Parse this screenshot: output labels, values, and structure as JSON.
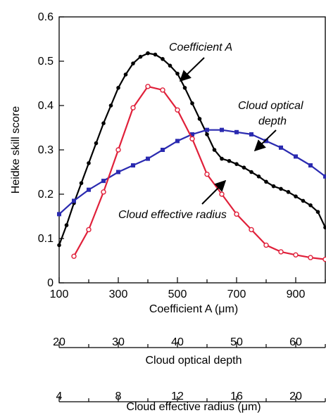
{
  "chart_data": {
    "type": "line",
    "title": "",
    "ylabel": "Heidke skill score",
    "ylim": [
      0,
      0.6
    ],
    "yticks": [
      "0",
      "0.1",
      "0.2",
      "0.3",
      "0.4",
      "0.5",
      "0.6"
    ],
    "ytick_values": [
      0,
      0.1,
      0.2,
      0.3,
      0.4,
      0.5,
      0.6
    ],
    "grid": false,
    "legend": "none",
    "axes": [
      {
        "name": "Coefficient A (μm)",
        "range": [
          100,
          1000
        ],
        "ticks": [
          100,
          300,
          500,
          700,
          900
        ],
        "tick_labels": [
          "100",
          "300",
          "500",
          "700",
          "900"
        ],
        "minor_ticks": [
          200,
          400,
          600,
          800,
          1000
        ]
      },
      {
        "name": "Cloud optical depth",
        "range": [
          20,
          65
        ],
        "ticks": [
          20,
          30,
          40,
          50,
          60
        ],
        "tick_labels": [
          "20",
          "30",
          "40",
          "50",
          "60"
        ],
        "minor_ticks": [
          25,
          35,
          45,
          55,
          65
        ]
      },
      {
        "name": "Cloud effective radius (μm)",
        "range": [
          4,
          22
        ],
        "ticks": [
          4,
          8,
          12,
          16,
          20
        ],
        "tick_labels": [
          "4",
          "8",
          "12",
          "16",
          "20"
        ],
        "minor_ticks": [
          6,
          10,
          14,
          18,
          22
        ]
      }
    ],
    "series": [
      {
        "name": "Coefficient A",
        "color": "#000000",
        "marker": "filled-circle",
        "x": [
          100,
          125,
          150,
          175,
          200,
          225,
          250,
          275,
          300,
          325,
          350,
          375,
          400,
          425,
          450,
          475,
          500,
          525,
          550,
          575,
          600,
          625,
          650,
          675,
          700,
          725,
          750,
          775,
          800,
          825,
          850,
          875,
          900,
          925,
          950,
          975,
          1000
        ],
        "y": [
          0.085,
          0.13,
          0.18,
          0.225,
          0.27,
          0.315,
          0.36,
          0.4,
          0.44,
          0.47,
          0.495,
          0.51,
          0.518,
          0.515,
          0.505,
          0.49,
          0.472,
          0.44,
          0.405,
          0.37,
          0.335,
          0.3,
          0.28,
          0.275,
          0.268,
          0.26,
          0.25,
          0.24,
          0.228,
          0.218,
          0.212,
          0.205,
          0.195,
          0.185,
          0.175,
          0.16,
          0.125
        ]
      },
      {
        "name": "Cloud optical depth",
        "color": "#2a2ab0",
        "marker": "filled-square",
        "x": [
          20,
          22.5,
          25,
          27.5,
          30,
          32.5,
          35,
          37.5,
          40,
          42.5,
          45,
          47.5,
          50,
          52.5,
          55,
          57.5,
          60,
          62.5,
          65
        ],
        "y": [
          0.155,
          0.185,
          0.21,
          0.23,
          0.25,
          0.265,
          0.28,
          0.3,
          0.32,
          0.335,
          0.345,
          0.345,
          0.34,
          0.335,
          0.32,
          0.305,
          0.285,
          0.265,
          0.24
        ]
      },
      {
        "name": "Cloud effective radius",
        "color": "#e0203a",
        "marker": "open-circle",
        "x": [
          5,
          6,
          7,
          8,
          9,
          10,
          11,
          12,
          13,
          14,
          15,
          16,
          17,
          18,
          19,
          20,
          21,
          22
        ],
        "y": [
          0.06,
          0.12,
          0.205,
          0.3,
          0.395,
          0.443,
          0.435,
          0.39,
          0.325,
          0.245,
          0.2,
          0.155,
          0.12,
          0.085,
          0.07,
          0.063,
          0.057,
          0.053
        ]
      }
    ],
    "annotations": [
      {
        "text": "Coefficient A",
        "series": "Coefficient A"
      },
      {
        "text": "Cloud optical depth",
        "lines": [
          "Cloud optical",
          "depth"
        ],
        "series": "Cloud optical depth"
      },
      {
        "text": "Cloud effective radius",
        "series": "Cloud effective radius"
      }
    ]
  }
}
